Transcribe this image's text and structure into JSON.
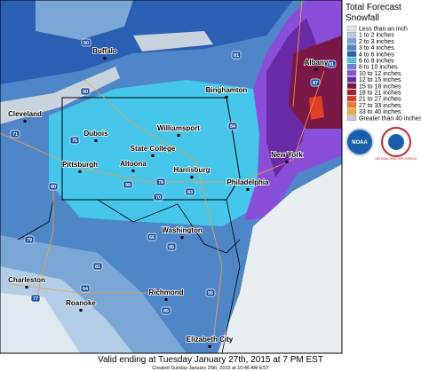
{
  "legend": {
    "title_lines": [
      "Total Forecast",
      "Snowfall"
    ],
    "items": [
      {
        "label": "Less than an inch",
        "color": "#dfe7ef"
      },
      {
        "label": "1 to 2 inches",
        "color": "#b3cde6"
      },
      {
        "label": "2 to 3 inches",
        "color": "#7aa7d6"
      },
      {
        "label": "3 to 4 inches",
        "color": "#4f86c8"
      },
      {
        "label": "4 to 6 inches",
        "color": "#2a5fb4"
      },
      {
        "label": "6 to 8 inches",
        "color": "#45c6ea"
      },
      {
        "label": "8 to 10 inches",
        "color": "#6f7fe0"
      },
      {
        "label": "10 to 12 inches",
        "color": "#8a4fd8"
      },
      {
        "label": "12 to 15 inches",
        "color": "#6a2aa8"
      },
      {
        "label": "15 to 18 inches",
        "color": "#7a1848"
      },
      {
        "label": "18 to 21 inches",
        "color": "#b0202a"
      },
      {
        "label": "21 to 27 inches",
        "color": "#e0402a"
      },
      {
        "label": "27 to 33 inches",
        "color": "#f07a2a"
      },
      {
        "label": "33 to 40 inches",
        "color": "#f5a83a"
      },
      {
        "label": "Greater than 40 inches",
        "color": "#c8c8c8"
      }
    ]
  },
  "logos": {
    "noaa": "NOAA",
    "nws": "NATIONAL WEATHER SERVICE"
  },
  "cities": [
    "Buffalo",
    "Albany",
    "Binghamton",
    "Cleveland",
    "Williamsport",
    "Dubois",
    "State College",
    "New York",
    "Pittsburgh",
    "Altoona",
    "Harrisburg",
    "Philadelphia",
    "Washington",
    "Charleston",
    "Richmond",
    "Roanoke",
    "Elizabeth City"
  ],
  "shields": [
    "90",
    "91",
    "87",
    "90",
    "71",
    "81",
    "84",
    "76",
    "80",
    "99",
    "78",
    "83",
    "70",
    "95",
    "79",
    "66",
    "64",
    "81",
    "77",
    "85",
    "95"
  ],
  "footer": {
    "valid": "Valid ending at Tuesday January 27th, 2015 at 7 PM EST",
    "created": "Created Sunday January 25th, 2015 at 10:46 AM EST"
  }
}
